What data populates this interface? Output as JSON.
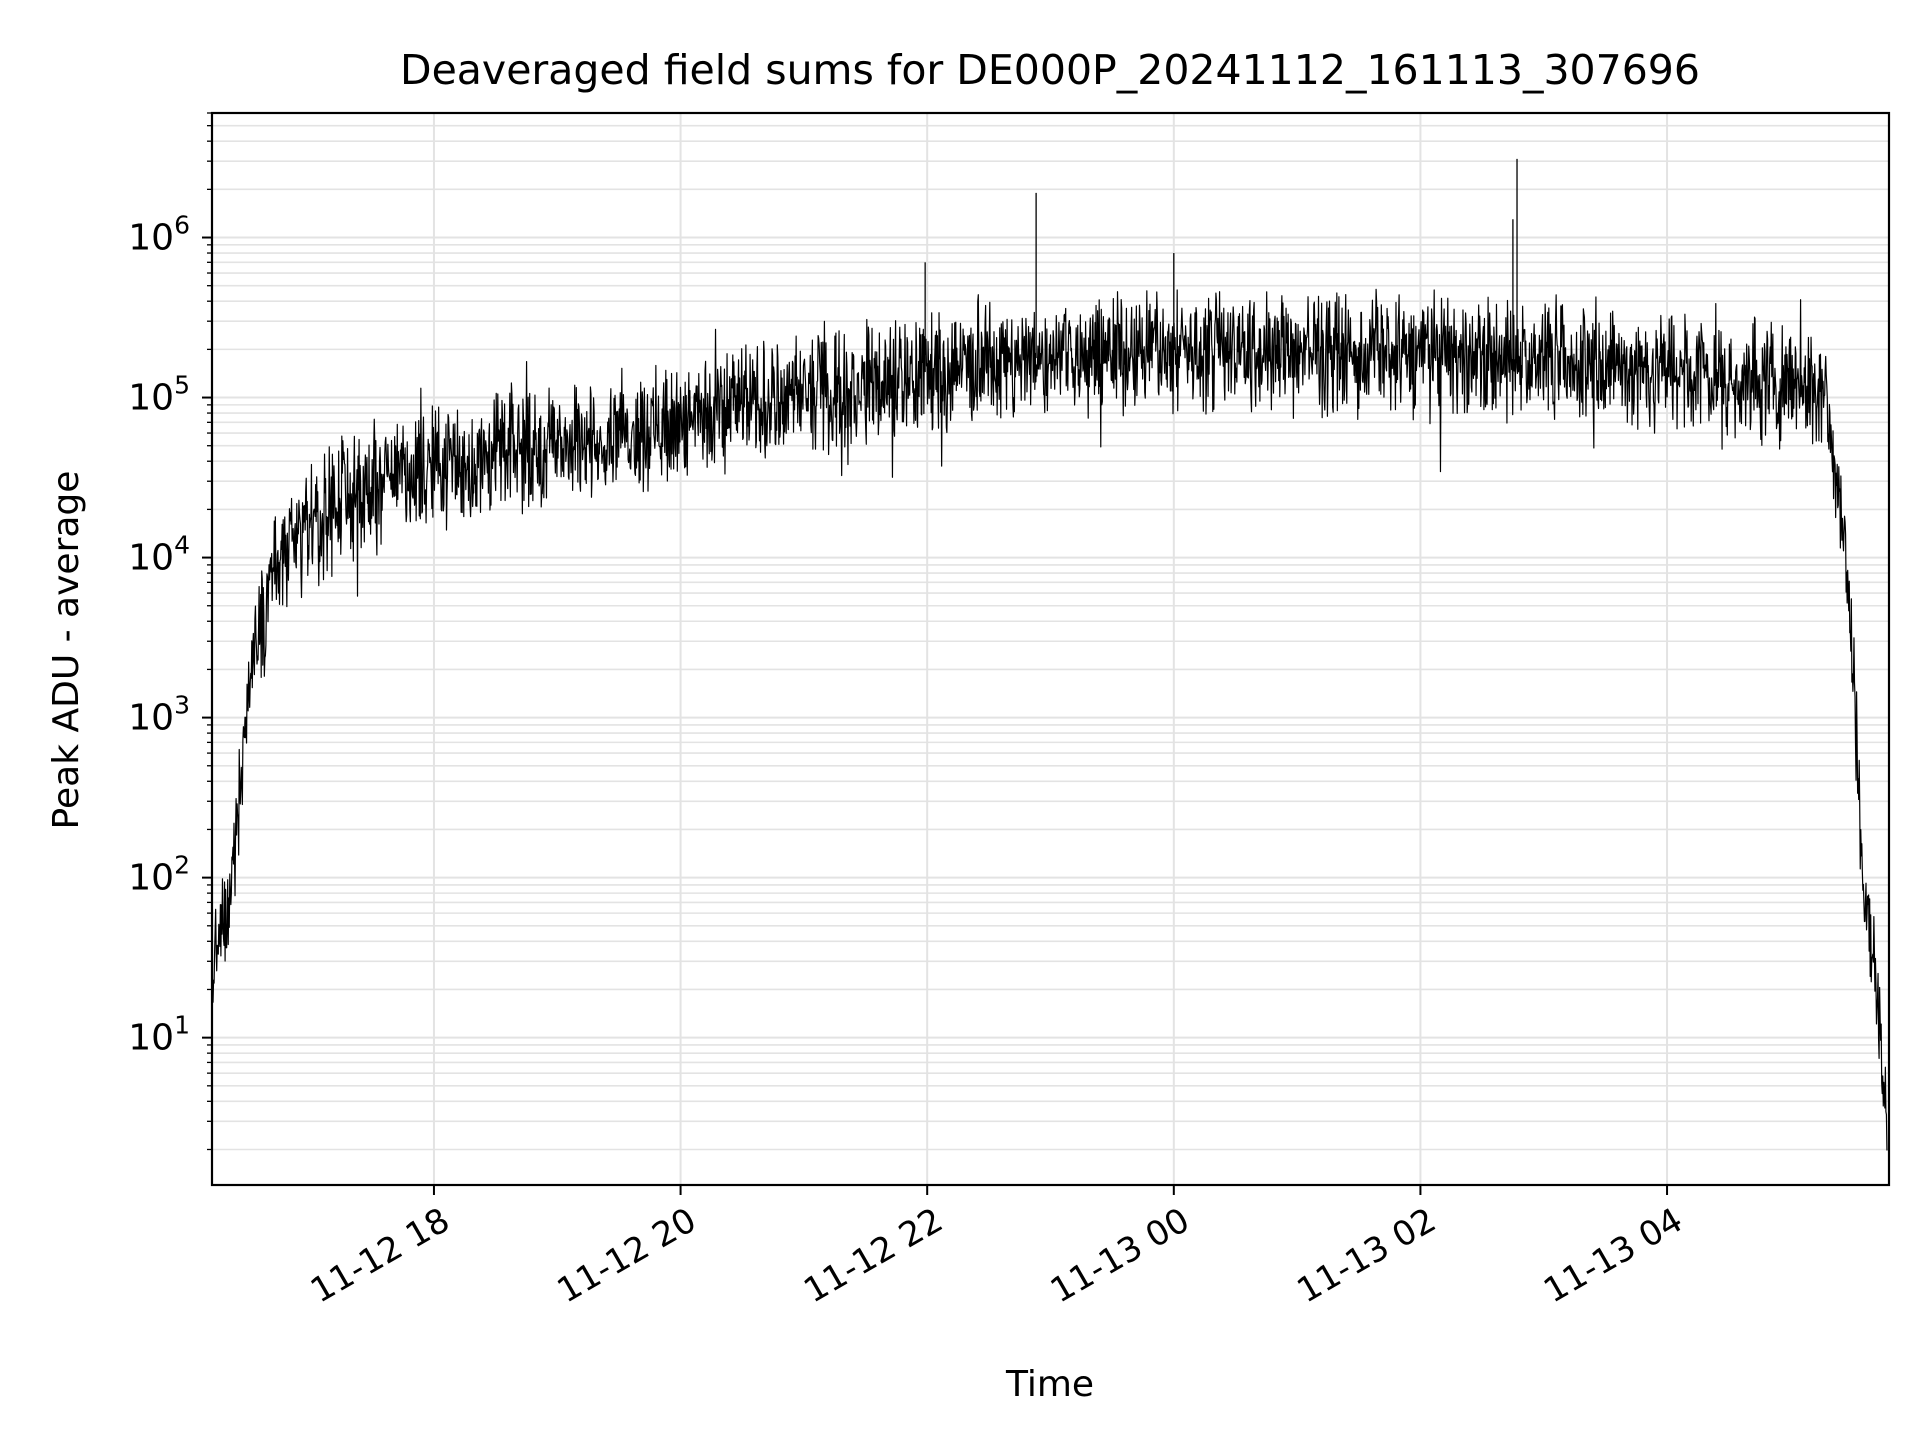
{
  "chart_data": {
    "type": "line",
    "title": "Deaveraged field sums for DE000P_20241112_161113_307696",
    "xlabel": "Time",
    "ylabel": "Peak ADU - average",
    "x_type": "datetime",
    "x_range": [
      "2024-11-12 16:12",
      "2024-11-13 05:48"
    ],
    "ylim": [
      1.2,
      6000000
    ],
    "y_scale": "log",
    "grid": true,
    "legend": "none",
    "line_color": "#000000",
    "x_ticks": [
      {
        "value": "2024-11-12 18:00",
        "label": "11-12 18"
      },
      {
        "value": "2024-11-12 20:00",
        "label": "11-12 20"
      },
      {
        "value": "2024-11-12 22:00",
        "label": "11-12 22"
      },
      {
        "value": "2024-11-13 00:00",
        "label": "11-13 00"
      },
      {
        "value": "2024-11-13 02:00",
        "label": "11-13 02"
      },
      {
        "value": "2024-11-13 04:00",
        "label": "11-13 04"
      }
    ],
    "y_ticks": [
      {
        "value": 10,
        "base": "10",
        "exp": "1"
      },
      {
        "value": 100,
        "base": "10",
        "exp": "2"
      },
      {
        "value": 1000,
        "base": "10",
        "exp": "3"
      },
      {
        "value": 10000,
        "base": "10",
        "exp": "4"
      },
      {
        "value": 100000,
        "base": "10",
        "exp": "5"
      },
      {
        "value": 1000000,
        "base": "10",
        "exp": "6"
      }
    ],
    "series": [
      {
        "x": [
          "2024-11-12 16:12",
          "2024-11-12 16:13",
          "2024-11-12 16:16",
          "2024-11-12 16:20",
          "2024-11-12 16:25",
          "2024-11-12 16:30",
          "2024-11-12 16:35",
          "2024-11-12 16:40",
          "2024-11-12 16:50",
          "2024-11-12 17:00",
          "2024-11-12 17:10",
          "2024-11-12 17:20",
          "2024-11-12 17:30",
          "2024-11-12 17:45",
          "2024-11-12 18:00",
          "2024-11-12 18:30",
          "2024-11-12 19:00",
          "2024-11-12 19:30",
          "2024-11-12 20:00",
          "2024-11-12 20:30",
          "2024-11-12 21:00",
          "2024-11-12 21:30",
          "2024-11-12 22:00",
          "2024-11-12 22:30",
          "2024-11-12 23:00",
          "2024-11-12 23:30",
          "2024-11-13 00:00",
          "2024-11-13 00:30",
          "2024-11-13 01:00",
          "2024-11-13 01:30",
          "2024-11-13 02:00",
          "2024-11-13 02:30",
          "2024-11-13 03:00",
          "2024-11-13 03:30",
          "2024-11-13 04:00",
          "2024-11-13 04:30",
          "2024-11-13 05:00",
          "2024-11-13 05:15",
          "2024-11-13 05:20",
          "2024-11-13 05:25",
          "2024-11-13 05:30",
          "2024-11-13 05:33",
          "2024-11-13 05:36",
          "2024-11-13 05:40",
          "2024-11-13 05:44",
          "2024-11-13 05:47"
        ],
        "y": [
          12,
          30,
          40,
          60,
          300,
          1500,
          4000,
          7000,
          11000,
          16000,
          20000,
          25000,
          30000,
          35000,
          38000,
          45000,
          52000,
          62000,
          72000,
          90000,
          105000,
          125000,
          145000,
          165000,
          180000,
          190000,
          200000,
          195000,
          190000,
          185000,
          180000,
          178000,
          170000,
          160000,
          150000,
          140000,
          125000,
          100000,
          65000,
          20000,
          3000,
          500,
          60,
          40,
          10,
          2.5
        ]
      }
    ],
    "spikes": [
      {
        "x": "2024-11-12 22:53",
        "y": 1900000
      },
      {
        "x": "2024-11-13 02:47",
        "y": 3100000
      },
      {
        "x": "2024-11-13 02:45",
        "y": 1300000
      },
      {
        "x": "2024-11-13 00:00",
        "y": 800000
      },
      {
        "x": "2024-11-12 21:59",
        "y": 700000
      }
    ]
  }
}
